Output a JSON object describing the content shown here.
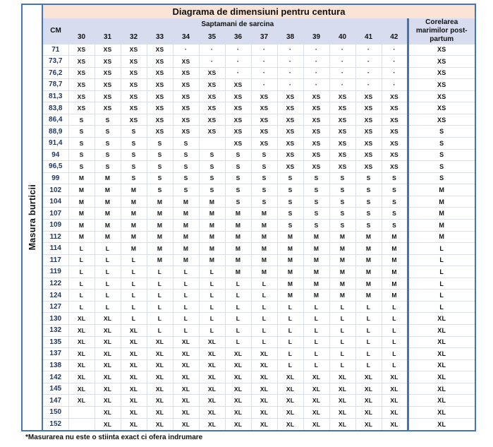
{
  "colors": {
    "accent_border": "#4473B8",
    "title_bg": "#FBE3D5",
    "header_bg": "#D7DDEF",
    "grid_line": "#D9DEE9",
    "cm_text": "#1F3864"
  },
  "chart_data": {
    "type": "table",
    "title": "Diagrama de dimensiuni pentru centura",
    "row_axis_label": "Masura burticii",
    "cm_header": "CM",
    "column_group_label": "Saptamani de sarcina",
    "week_columns": [
      "30",
      "31",
      "32",
      "33",
      "34",
      "35",
      "36",
      "37",
      "38",
      "39",
      "40",
      "41",
      "42"
    ],
    "postpartum_header": "Corelarea marimilor post-partum",
    "footnote": "*Masurarea nu este o stiinta exact ci ofera indrumare",
    "rows": [
      {
        "cm": "71",
        "sizes": [
          "XS",
          "XS",
          "XS",
          "XS",
          "·",
          "·",
          "·",
          "·",
          "·",
          "·",
          "·",
          "·",
          "·"
        ],
        "postpartum": "XS"
      },
      {
        "cm": "73,7",
        "sizes": [
          "XS",
          "XS",
          "XS",
          "XS",
          "XS",
          "·",
          "·",
          "·",
          "·",
          "·",
          "·",
          "·",
          "·"
        ],
        "postpartum": "XS"
      },
      {
        "cm": "76,2",
        "sizes": [
          "XS",
          "XS",
          "XS",
          "XS",
          "XS",
          "XS",
          "·",
          "·",
          "·",
          "·",
          "·",
          "·",
          "·"
        ],
        "postpartum": "XS"
      },
      {
        "cm": "78,7",
        "sizes": [
          "XS",
          "XS",
          "XS",
          "XS",
          "XS",
          "XS",
          "XS",
          "·",
          "·",
          "·",
          "·",
          "·",
          "·"
        ],
        "postpartum": "XS"
      },
      {
        "cm": "81,3",
        "sizes": [
          "XS",
          "XS",
          "XS",
          "XS",
          "XS",
          "XS",
          "XS",
          "XS",
          "XS",
          "XS",
          "XS",
          "XS",
          "XS"
        ],
        "postpartum": "XS"
      },
      {
        "cm": "83,8",
        "sizes": [
          "XS",
          "XS",
          "XS",
          "XS",
          "XS",
          "XS",
          "XS",
          "XS",
          "XS",
          "XS",
          "XS",
          "XS",
          "XS"
        ],
        "postpartum": "XS"
      },
      {
        "cm": "86,4",
        "sizes": [
          "S",
          "S",
          "XS",
          "XS",
          "XS",
          "XS",
          "XS",
          "XS",
          "XS",
          "XS",
          "XS",
          "XS",
          "XS"
        ],
        "postpartum": "XS"
      },
      {
        "cm": "88,9",
        "sizes": [
          "S",
          "S",
          "S",
          "XS",
          "XS",
          "XS",
          "XS",
          "XS",
          "XS",
          "XS",
          "XS",
          "XS",
          "XS"
        ],
        "postpartum": "S"
      },
      {
        "cm": "91,4",
        "sizes": [
          "S",
          "S",
          "S",
          "S",
          "S",
          "",
          "XS",
          "XS",
          "XS",
          "XS",
          "XS",
          "XS",
          "XS"
        ],
        "postpartum": "S"
      },
      {
        "cm": "94",
        "sizes": [
          "S",
          "S",
          "S",
          "S",
          "S",
          "S",
          "S",
          "S",
          "XS",
          "XS",
          "XS",
          "XS",
          "XS"
        ],
        "postpartum": "S"
      },
      {
        "cm": "96,5",
        "sizes": [
          "S",
          "S",
          "S",
          "S",
          "S",
          "S",
          "S",
          "S",
          "XS",
          "XS",
          "XS",
          "XS",
          "XS"
        ],
        "postpartum": "S"
      },
      {
        "cm": "99",
        "sizes": [
          "M",
          "M",
          "S",
          "S",
          "S",
          "S",
          "S",
          "S",
          "S",
          "S",
          "S",
          "S",
          "S"
        ],
        "postpartum": "S"
      },
      {
        "cm": "102",
        "sizes": [
          "M",
          "M",
          "M",
          "S",
          "S",
          "S",
          "S",
          "S",
          "S",
          "S",
          "S",
          "S",
          "S"
        ],
        "postpartum": "M"
      },
      {
        "cm": "104",
        "sizes": [
          "M",
          "M",
          "M",
          "M",
          "M",
          "M",
          "S",
          "S",
          "S",
          "S",
          "S",
          "S",
          "S"
        ],
        "postpartum": "M"
      },
      {
        "cm": "107",
        "sizes": [
          "M",
          "M",
          "M",
          "M",
          "M",
          "M",
          "M",
          "M",
          "S",
          "S",
          "S",
          "S",
          "S"
        ],
        "postpartum": "M"
      },
      {
        "cm": "109",
        "sizes": [
          "M",
          "M",
          "M",
          "M",
          "M",
          "M",
          "M",
          "M",
          "S",
          "S",
          "S",
          "S",
          "S"
        ],
        "postpartum": "M"
      },
      {
        "cm": "112",
        "sizes": [
          "M",
          "M",
          "M",
          "M",
          "M",
          "M",
          "M",
          "M",
          "M",
          "M",
          "M",
          "M",
          "M"
        ],
        "postpartum": "M"
      },
      {
        "cm": "114",
        "sizes": [
          "L",
          "L",
          "M",
          "M",
          "M",
          "M",
          "M",
          "M",
          "M",
          "M",
          "M",
          "M",
          "M"
        ],
        "postpartum": "L"
      },
      {
        "cm": "117",
        "sizes": [
          "L",
          "L",
          "L",
          "M",
          "M",
          "M",
          "M",
          "M",
          "M",
          "M",
          "M",
          "M",
          "M"
        ],
        "postpartum": "L"
      },
      {
        "cm": "119",
        "sizes": [
          "L",
          "L",
          "L",
          "L",
          "L",
          "L",
          "M",
          "M",
          "M",
          "M",
          "M",
          "M",
          "M"
        ],
        "postpartum": "L"
      },
      {
        "cm": "122",
        "sizes": [
          "L",
          "L",
          "L",
          "L",
          "L",
          "L",
          "L",
          "L",
          "M",
          "M",
          "M",
          "M",
          "M"
        ],
        "postpartum": "L"
      },
      {
        "cm": "124",
        "sizes": [
          "L",
          "L",
          "L",
          "L",
          "L",
          "L",
          "L",
          "L",
          "M",
          "M",
          "M",
          "M",
          "M"
        ],
        "postpartum": "L"
      },
      {
        "cm": "127",
        "sizes": [
          "L",
          "L",
          "L",
          "L",
          "L",
          "L",
          "L",
          "L",
          "L",
          "L",
          "L",
          "L",
          "L"
        ],
        "postpartum": "L"
      },
      {
        "cm": "130",
        "sizes": [
          "XL",
          "XL",
          "L",
          "L",
          "L",
          "L",
          "L",
          "L",
          "L",
          "L",
          "L",
          "L",
          "L"
        ],
        "postpartum": "XL"
      },
      {
        "cm": "132",
        "sizes": [
          "XL",
          "XL",
          "XL",
          "L",
          "L",
          "L",
          "L",
          "L",
          "L",
          "L",
          "L",
          "L",
          "L"
        ],
        "postpartum": "XL"
      },
      {
        "cm": "135",
        "sizes": [
          "XL",
          "XL",
          "XL",
          "XL",
          "XL",
          "XL",
          "L",
          "L",
          "L",
          "L",
          "L",
          "L",
          "L"
        ],
        "postpartum": "XL"
      },
      {
        "cm": "137",
        "sizes": [
          "XL",
          "XL",
          "XL",
          "XL",
          "XL",
          "XL",
          "XL",
          "XL",
          "L",
          "L",
          "L",
          "L",
          "L"
        ],
        "postpartum": "XL"
      },
      {
        "cm": "138",
        "sizes": [
          "XL",
          "XL",
          "XL",
          "XL",
          "XL",
          "XL",
          "XL",
          "XL",
          "L",
          "L",
          "L",
          "L",
          "L"
        ],
        "postpartum": "XL"
      },
      {
        "cm": "142",
        "sizes": [
          "XL",
          "XL",
          "XL",
          "XL",
          "XL",
          "XL",
          "XL",
          "XL",
          "XL",
          "XL",
          "XL",
          "XL",
          "XL"
        ],
        "postpartum": "XL"
      },
      {
        "cm": "145",
        "sizes": [
          "XL",
          "XL",
          "XL",
          "XL",
          "XL",
          "XL",
          "XL",
          "XL",
          "XL",
          "XL",
          "XL",
          "XL",
          "XL"
        ],
        "postpartum": "XL"
      },
      {
        "cm": "147",
        "sizes": [
          "XL",
          "XL",
          "XL",
          "XL",
          "XL",
          "XL",
          "XL",
          "XL",
          "XL",
          "XL",
          "XL",
          "XL",
          "XL"
        ],
        "postpartum": "XL"
      },
      {
        "cm": "150",
        "sizes": [
          "",
          "XL",
          "XL",
          "XL",
          "XL",
          "XL",
          "XL",
          "XL",
          "XL",
          "XL",
          "XL",
          "XL",
          "XL"
        ],
        "postpartum": "XL"
      },
      {
        "cm": "152",
        "sizes": [
          "",
          "XL",
          "XL",
          "XL",
          "XL",
          "XL",
          "XL",
          "XL",
          "XL",
          "XL",
          "XL",
          "XL",
          "XL"
        ],
        "postpartum": "XL"
      }
    ]
  }
}
